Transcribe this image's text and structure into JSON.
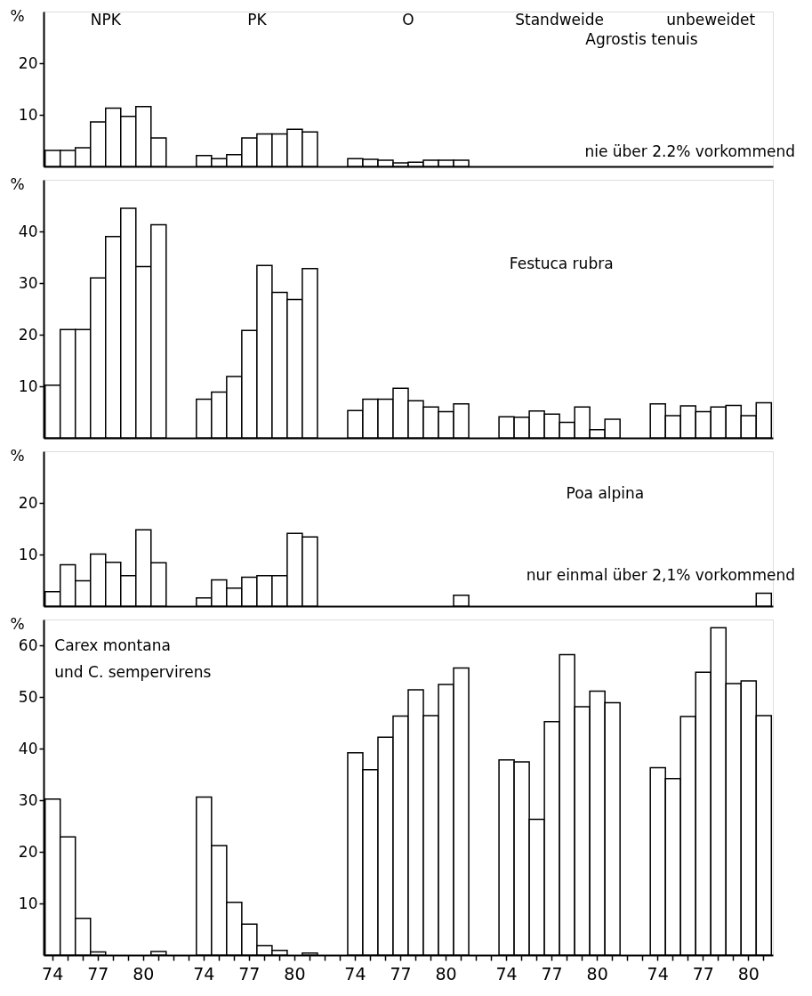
{
  "chart_data": [
    {
      "type": "bar",
      "title": "Agrostis tenuis",
      "ylabel": "%",
      "color": "#ffffff",
      "ylim": [
        0,
        30
      ],
      "yticks": [
        10,
        20
      ],
      "tick_labels": "y",
      "annotations": [
        "NPK",
        "PK",
        "O",
        "Standweide",
        "unbeweidet",
        "nie über 2.2% vorkommend"
      ],
      "categories": [
        "74",
        null,
        null,
        "77",
        null,
        null,
        "80",
        null,
        null,
        null,
        "74",
        null,
        null,
        "77",
        null,
        null,
        "80",
        null,
        null,
        null,
        "74",
        null,
        null,
        "77",
        null,
        null,
        "80",
        null,
        null,
        null,
        "74",
        null,
        null,
        "77",
        null,
        null,
        "80",
        null,
        null,
        null,
        "74",
        null,
        null,
        "77",
        null,
        null,
        "80",
        null
      ],
      "values": [
        3.1,
        3.1,
        3.6,
        8.6,
        11.3,
        9.7,
        11.6,
        5.5,
        null,
        null,
        2.1,
        1.5,
        2.3,
        5.5,
        6.3,
        6.3,
        7.2,
        6.7,
        null,
        null,
        1.5,
        1.4,
        1.2,
        0.7,
        0.8,
        1.2,
        1.2,
        1.2,
        null,
        null,
        null,
        null,
        null,
        null,
        null,
        null,
        null,
        null,
        null,
        null,
        null,
        null,
        null,
        null,
        null,
        null,
        null,
        null
      ]
    },
    {
      "type": "bar",
      "title": "Festuca rubra",
      "ylabel": "%",
      "color": "#ffffff",
      "ylim": [
        0,
        50
      ],
      "yticks": [
        10,
        20,
        30,
        40
      ],
      "tick_labels": "y",
      "categories": [
        "74",
        null,
        null,
        "77",
        null,
        null,
        "80",
        null,
        null,
        null,
        "74",
        null,
        null,
        "77",
        null,
        null,
        "80",
        null,
        null,
        null,
        "74",
        null,
        null,
        "77",
        null,
        null,
        "80",
        null,
        null,
        null,
        "74",
        null,
        null,
        "77",
        null,
        null,
        "80",
        null,
        null,
        null,
        "74",
        null,
        null,
        "77",
        null,
        null,
        "80",
        null
      ],
      "values": [
        10.2,
        21,
        21,
        31,
        39,
        44.5,
        33.2,
        41.3,
        null,
        null,
        7.5,
        8.9,
        11.9,
        20.8,
        33.4,
        28.2,
        26.8,
        32.8,
        null,
        null,
        5.3,
        7.5,
        7.5,
        9.6,
        7.2,
        6.0,
        5.1,
        6.6,
        null,
        null,
        4.1,
        4.0,
        5.2,
        4.6,
        3.0,
        6.0,
        1.6,
        3.6,
        null,
        null,
        6.6,
        4.3,
        6.2,
        5.1,
        6.0,
        6.3,
        4.3,
        6.8
      ]
    },
    {
      "type": "bar",
      "title": "Poa alpina",
      "ylabel": "%",
      "color": "#ffffff",
      "ylim": [
        0,
        30
      ],
      "yticks": [
        10,
        20
      ],
      "tick_labels": "y",
      "annotations": [
        "nur einmal über 2,1% vorkommend"
      ],
      "categories": [
        "74",
        null,
        null,
        "77",
        null,
        null,
        "80",
        null,
        null,
        null,
        "74",
        null,
        null,
        "77",
        null,
        null,
        "80",
        null,
        null,
        null,
        "74",
        null,
        null,
        "77",
        null,
        null,
        "80",
        null,
        null,
        null,
        "74",
        null,
        null,
        "77",
        null,
        null,
        "80",
        null,
        null,
        null,
        "74",
        null,
        null,
        "77",
        null,
        null,
        "80",
        null
      ],
      "values": [
        2.8,
        8.0,
        4.9,
        10.1,
        8.5,
        5.9,
        14.8,
        8.4,
        null,
        null,
        1.6,
        5.1,
        3.5,
        5.6,
        5.9,
        5.9,
        14.1,
        13.4,
        null,
        null,
        null,
        null,
        null,
        null,
        null,
        null,
        null,
        2.1,
        null,
        null,
        null,
        null,
        null,
        null,
        null,
        null,
        null,
        null,
        null,
        null,
        null,
        null,
        null,
        null,
        null,
        null,
        null,
        2.5
      ]
    },
    {
      "type": "bar",
      "title": "Carex montana\nund C. sempervirens",
      "ylabel": "%",
      "color": "#ffffff",
      "ylim": [
        0,
        65
      ],
      "yticks": [
        10,
        20,
        30,
        40,
        50,
        60
      ],
      "categories": [
        "74",
        null,
        null,
        "77",
        null,
        null,
        "80",
        null,
        null,
        null,
        "74",
        null,
        null,
        "77",
        null,
        null,
        "80",
        null,
        null,
        null,
        "74",
        null,
        null,
        "77",
        null,
        null,
        "80",
        null,
        null,
        null,
        "74",
        null,
        null,
        "77",
        null,
        null,
        "80",
        null,
        null,
        null,
        "74",
        null,
        null,
        "77",
        null,
        null,
        "80",
        null
      ],
      "values": [
        30.2,
        22.9,
        7.1,
        0.6,
        null,
        null,
        null,
        0.7,
        null,
        null,
        30.6,
        21.2,
        10.2,
        6.0,
        1.8,
        0.9,
        null,
        0.4,
        null,
        null,
        39.2,
        35.9,
        42.2,
        46.3,
        51.4,
        46.4,
        52.4,
        55.6,
        null,
        null,
        37.8,
        37.4,
        26.3,
        45.2,
        58.2,
        48.1,
        51.1,
        48.9,
        null,
        null,
        36.3,
        34.2,
        46.2,
        54.8,
        63.4,
        52.6,
        53.1,
        46.4
      ]
    }
  ]
}
